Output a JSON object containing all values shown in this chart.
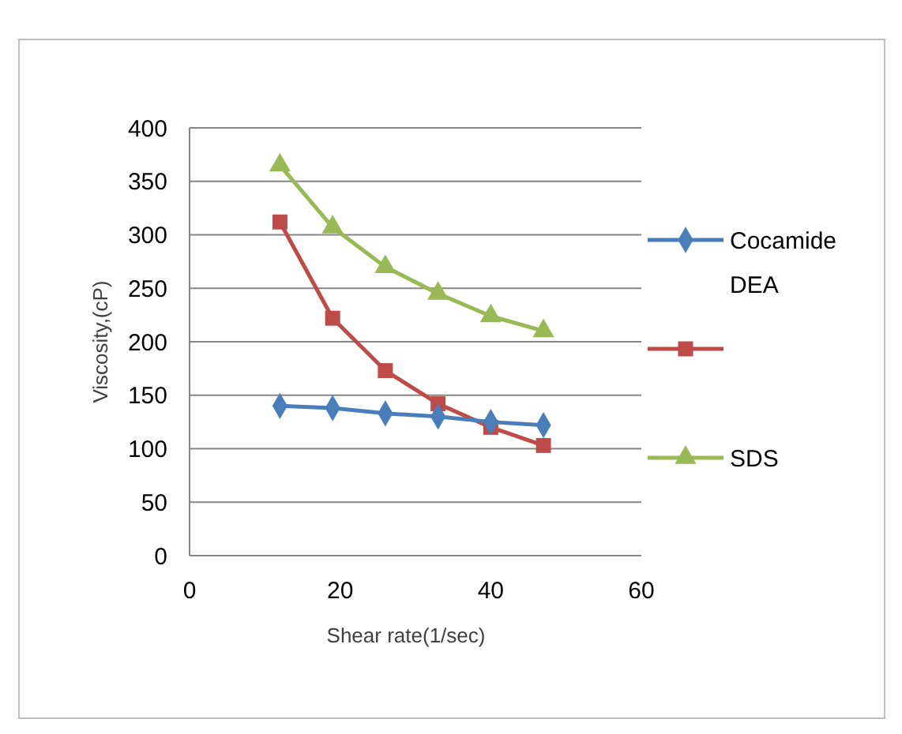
{
  "chart_data": {
    "type": "line",
    "xlabel": "Shear rate(1/sec)",
    "ylabel": "Viscosity,(cP)",
    "x": [
      12,
      19,
      26,
      33,
      40,
      47
    ],
    "series": [
      {
        "name": "Cocamide DEA",
        "color": "#4a7ebb",
        "values": [
          140,
          138,
          133,
          130,
          125,
          122
        ],
        "marker": "diamond"
      },
      {
        "color": "#be4b48",
        "values": [
          312,
          222,
          173,
          142,
          120,
          103
        ],
        "marker": "square"
      },
      {
        "name": "SDS",
        "color": "#98b954",
        "values": [
          365,
          307,
          270,
          245,
          224,
          210
        ],
        "marker": "triangle"
      }
    ],
    "xlim": [
      0,
      60
    ],
    "xticks": [
      0,
      20,
      40,
      60
    ],
    "ylim": [
      0,
      400
    ],
    "yticks": [
      0,
      50,
      100,
      150,
      200,
      250,
      300,
      350,
      400
    ],
    "grid": "y",
    "legend": "right",
    "line_style": "solid"
  }
}
